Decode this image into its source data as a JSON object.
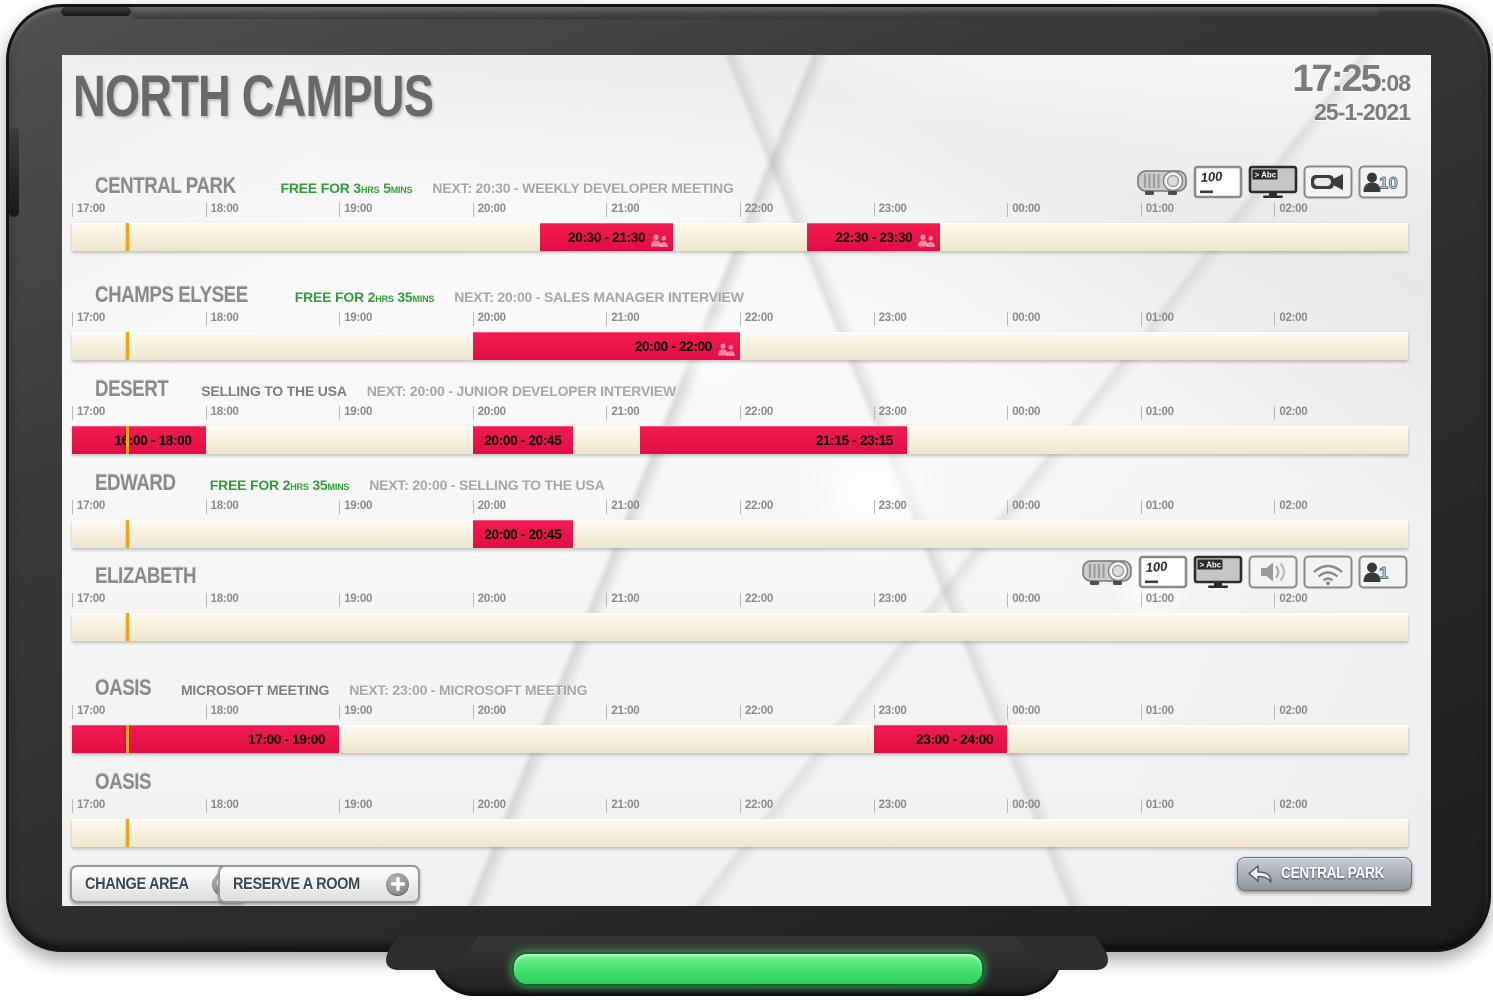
{
  "header": {
    "title": "NORTH CAMPUS",
    "time": "17:25",
    "seconds": ":08",
    "date": "25-1-2021"
  },
  "labels": {
    "free_for": "FREE FOR",
    "hrs": "HRS",
    "mins": "MINS"
  },
  "timeline": {
    "hours": [
      "17:00",
      "18:00",
      "19:00",
      "20:00",
      "21:00",
      "22:00",
      "23:00",
      "00:00",
      "01:00",
      "02:00"
    ]
  },
  "rooms": [
    {
      "name": "CENTRAL PARK",
      "free": {
        "hours": "3",
        "minutes": "5"
      },
      "next": "NEXT: 20:30 - WEEKLY DEVELOPER MEETING",
      "bookings": [
        {
          "start": "20:30",
          "end": "21:30",
          "attendees": true
        },
        {
          "start": "22:30",
          "end": "23:30",
          "attendees": true
        }
      ],
      "amenities": [
        {
          "type": "projector"
        },
        {
          "type": "whiteboard",
          "label": "100"
        },
        {
          "type": "screen",
          "label": "> Abc"
        },
        {
          "type": "camera"
        },
        {
          "type": "capacity",
          "label": "10"
        }
      ]
    },
    {
      "name": "CHAMPS ELYSEE",
      "free": {
        "hours": "2",
        "minutes": "35"
      },
      "next": "NEXT: 20:00 - SALES MANAGER INTERVIEW",
      "bookings": [
        {
          "start": "20:00",
          "end": "22:00",
          "attendees": true
        }
      ],
      "amenities": []
    },
    {
      "name": "DESERT",
      "current": "SELLING TO THE USA",
      "next": "NEXT: 20:00 - JUNIOR DEVELOPER INTERVIEW",
      "bookings": [
        {
          "start": "16:00",
          "end": "18:00"
        },
        {
          "start": "20:00",
          "end": "20:45"
        },
        {
          "start": "21:15",
          "end": "23:15"
        }
      ],
      "amenities": []
    },
    {
      "name": "EDWARD",
      "free": {
        "hours": "2",
        "minutes": "35"
      },
      "next": "NEXT: 20:00 - SELLING TO THE USA",
      "bookings": [
        {
          "start": "20:00",
          "end": "20:45"
        }
      ],
      "amenities": []
    },
    {
      "name": "ELIZABETH",
      "bookings": [],
      "amenities": [
        {
          "type": "projector"
        },
        {
          "type": "whiteboard",
          "label": "100"
        },
        {
          "type": "screen",
          "label": "> Abc"
        },
        {
          "type": "speaker"
        },
        {
          "type": "wifi"
        },
        {
          "type": "capacity",
          "label": "1"
        }
      ]
    },
    {
      "name": "OASIS",
      "current": "MICROSOFT MEETING",
      "next": "NEXT: 23:00 - MICROSOFT MEETING",
      "bookings": [
        {
          "start": "17:00",
          "end": "19:00"
        },
        {
          "start": "23:00",
          "end": "24:00"
        }
      ],
      "amenities": []
    },
    {
      "name": "OASIS",
      "bookings": [],
      "amenities": []
    }
  ],
  "footer": {
    "change_area_label": "CHANGE AREA",
    "reserve_room_label": "RESERVE A ROOM",
    "back_room_label": "CENTRAL PARK"
  }
}
